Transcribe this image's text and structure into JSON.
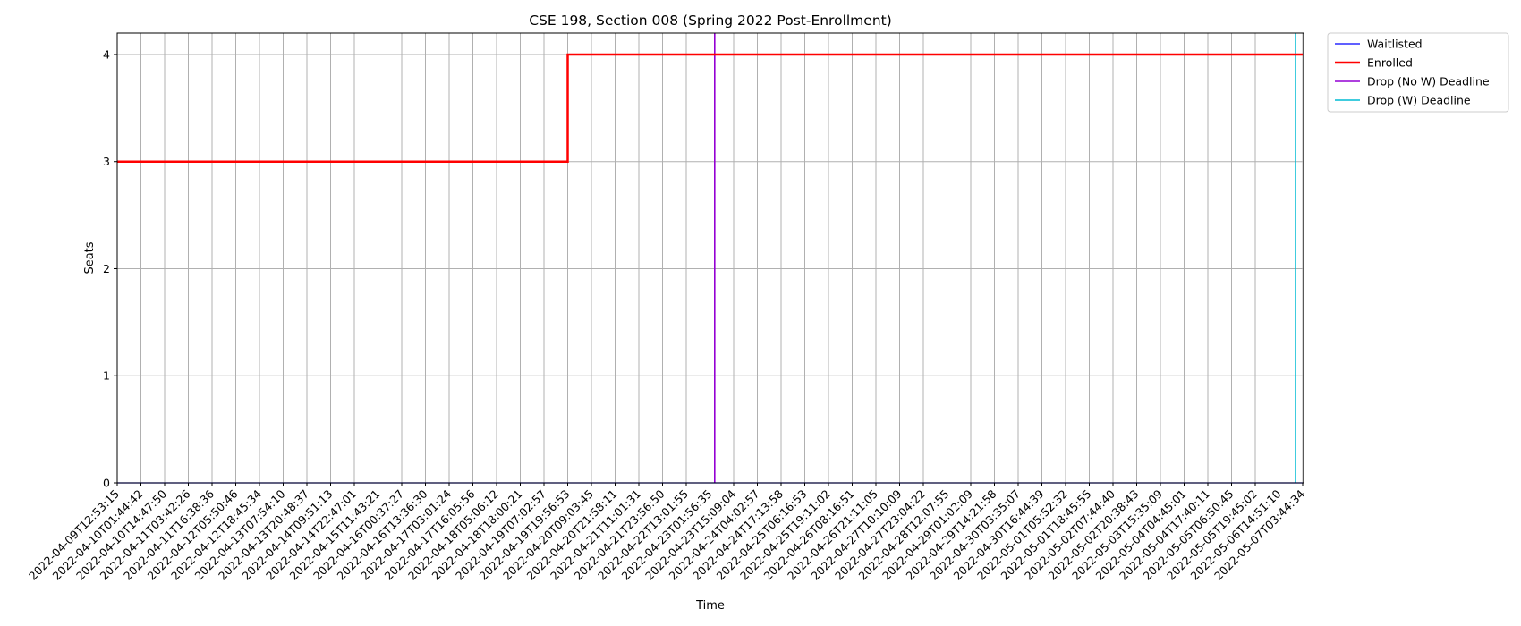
{
  "chart_data": {
    "type": "line",
    "title": "CSE 198, Section 008 (Spring 2022 Post-Enrollment)",
    "xlabel": "Time",
    "ylabel": "Seats",
    "ylim": [
      0,
      4.2
    ],
    "yticks": [
      0,
      1,
      2,
      3,
      4
    ],
    "grid": true,
    "legend_position": "outside-top-right",
    "x": [
      "2022-04-09T12:53:15",
      "2022-04-10T01:44:42",
      "2022-04-10T14:47:50",
      "2022-04-11T03:42:26",
      "2022-04-11T16:38:36",
      "2022-04-12T05:50:46",
      "2022-04-12T18:45:34",
      "2022-04-13T07:54:10",
      "2022-04-13T20:48:37",
      "2022-04-14T09:51:13",
      "2022-04-14T22:47:01",
      "2022-04-15T11:43:21",
      "2022-04-16T00:37:27",
      "2022-04-16T13:36:30",
      "2022-04-17T03:01:24",
      "2022-04-17T16:05:56",
      "2022-04-18T05:06:12",
      "2022-04-18T18:00:21",
      "2022-04-19T07:02:57",
      "2022-04-19T19:56:53",
      "2022-04-20T09:03:45",
      "2022-04-20T21:58:11",
      "2022-04-21T11:01:31",
      "2022-04-21T23:56:50",
      "2022-04-22T13:01:55",
      "2022-04-23T01:56:35",
      "2022-04-23T15:09:04",
      "2022-04-24T04:02:57",
      "2022-04-24T17:13:58",
      "2022-04-25T06:16:53",
      "2022-04-25T19:11:02",
      "2022-04-26T08:16:51",
      "2022-04-26T21:11:05",
      "2022-04-27T10:10:09",
      "2022-04-27T23:04:22",
      "2022-04-28T12:07:55",
      "2022-04-29T01:02:09",
      "2022-04-29T14:21:58",
      "2022-04-30T03:35:07",
      "2022-04-30T16:44:39",
      "2022-05-01T05:52:32",
      "2022-05-01T18:45:55",
      "2022-05-02T07:44:40",
      "2022-05-02T20:38:43",
      "2022-05-03T15:35:09",
      "2022-05-04T04:45:01",
      "2022-05-04T17:40:11",
      "2022-05-05T06:50:45",
      "2022-05-05T19:45:02",
      "2022-05-06T14:51:10",
      "2022-05-07T03:44:34"
    ],
    "series": [
      {
        "name": "Waitlisted",
        "color": "#0000ff",
        "style": "step",
        "values": [
          0,
          0,
          0,
          0,
          0,
          0,
          0,
          0,
          0,
          0,
          0,
          0,
          0,
          0,
          0,
          0,
          0,
          0,
          0,
          0,
          0,
          0,
          0,
          0,
          0,
          0,
          0,
          0,
          0,
          0,
          0,
          0,
          0,
          0,
          0,
          0,
          0,
          0,
          0,
          0,
          0,
          0,
          0,
          0,
          0,
          0,
          0,
          0,
          0,
          0,
          0
        ]
      },
      {
        "name": "Enrolled",
        "color": "#ff0000",
        "style": "step",
        "values": [
          3,
          3,
          3,
          3,
          3,
          3,
          3,
          3,
          3,
          3,
          3,
          3,
          3,
          3,
          3,
          3,
          3,
          3,
          3,
          4,
          4,
          4,
          4,
          4,
          4,
          4,
          4,
          4,
          4,
          4,
          4,
          4,
          4,
          4,
          4,
          4,
          4,
          4,
          4,
          4,
          4,
          4,
          4,
          4,
          4,
          4,
          4,
          4,
          4,
          4,
          4
        ]
      }
    ],
    "vlines": [
      {
        "name": "Drop (No W) Deadline",
        "color": "#9400d3",
        "x_index": 25.2
      },
      {
        "name": "Drop (W) Deadline",
        "color": "#00bcd4",
        "x_index": 49.7
      }
    ]
  }
}
